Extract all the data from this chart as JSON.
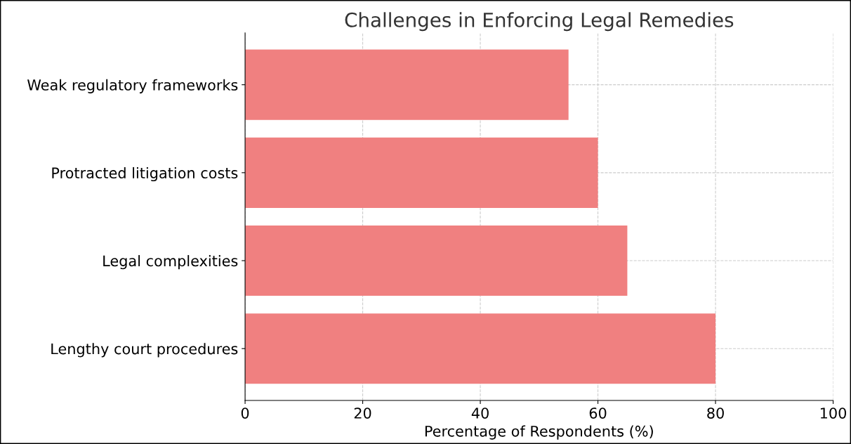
{
  "chart_data": {
    "type": "bar",
    "orientation": "horizontal",
    "title": "Challenges in Enforcing Legal Remedies",
    "xlabel": "Percentage of Respondents (%)",
    "categories": [
      "Weak regulatory frameworks",
      "Protracted litigation costs",
      "Legal complexities",
      "Lengthy court procedures"
    ],
    "values": [
      55,
      60,
      65,
      80
    ],
    "color": "#f08080",
    "xlim": [
      0,
      100
    ],
    "xticks": [
      0,
      20,
      40,
      60,
      80,
      100
    ],
    "grid": true
  }
}
